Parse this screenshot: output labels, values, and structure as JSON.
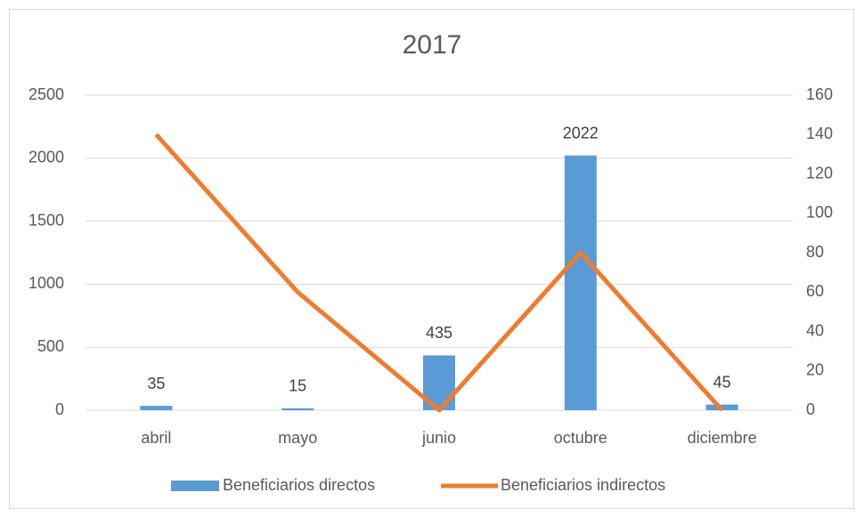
{
  "chart_data": {
    "type": "bar",
    "title": "2017",
    "categories": [
      "abril",
      "mayo",
      "junio",
      "octubre",
      "diciembre"
    ],
    "series": [
      {
        "name": "Beneficiarios directos",
        "color": "#5b9bd5",
        "type": "bar",
        "values": [
          35,
          15,
          435,
          2022,
          45
        ]
      },
      {
        "name": "Beneficiarios indirectos",
        "color": "#ed7d31",
        "type": "line",
        "axis": "y2",
        "values": [
          140,
          60,
          0,
          80,
          0
        ]
      }
    ],
    "ylim": [
      0,
      2500
    ],
    "yticks": [
      0,
      500,
      1000,
      1500,
      2000,
      2500
    ],
    "y2lim": [
      0,
      160
    ],
    "y2ticks": [
      0,
      20,
      40,
      60,
      80,
      100,
      120,
      140,
      160
    ],
    "grid": true,
    "legend": "bottom"
  }
}
